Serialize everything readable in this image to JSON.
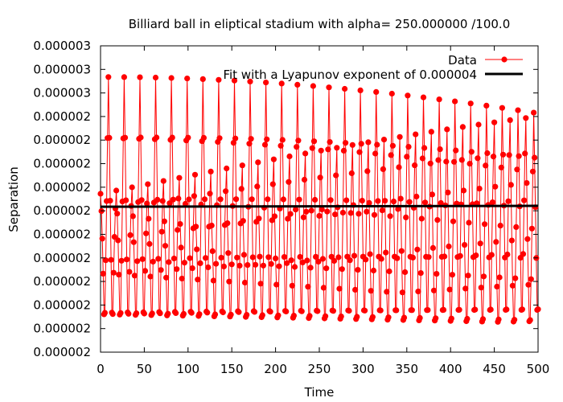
{
  "chart_data": {
    "type": "line",
    "title": "Billiard ball in eliptical stadium with alpha= 250.000000 /100.0",
    "xlabel": "Time",
    "ylabel": "Separation",
    "xlim": [
      0,
      500
    ],
    "x_ticks": [
      "0",
      "50",
      "100",
      "150",
      "200",
      "250",
      "300",
      "350",
      "400",
      "450",
      "500"
    ],
    "y_ticks": [
      "0.000002",
      "0.000002",
      "0.000002",
      "0.000002",
      "0.000002",
      "0.000002",
      "0.000002",
      "0.000002",
      "0.000002",
      "0.000002",
      "0.000002",
      "0.000003",
      "0.000003",
      "0.000003"
    ],
    "series": [
      {
        "name": "Data",
        "color": "#ff0000",
        "x_range": [
          0,
          500
        ],
        "sample_step": 1,
        "value_band": [
          1.6e-06,
          2.8e-06
        ],
        "oscillation_period": 9,
        "note_values": "dense oscillating samples between approximately 1.6e-6 and 2.8e-6"
      },
      {
        "name": "Fit with a Lyapunov exponent of 0.000004",
        "color": "#000000",
        "intercept": 2.2e-06,
        "lyapunov_exponent": 4e-06
      }
    ],
    "legend_position": "top-right",
    "grid": false
  }
}
